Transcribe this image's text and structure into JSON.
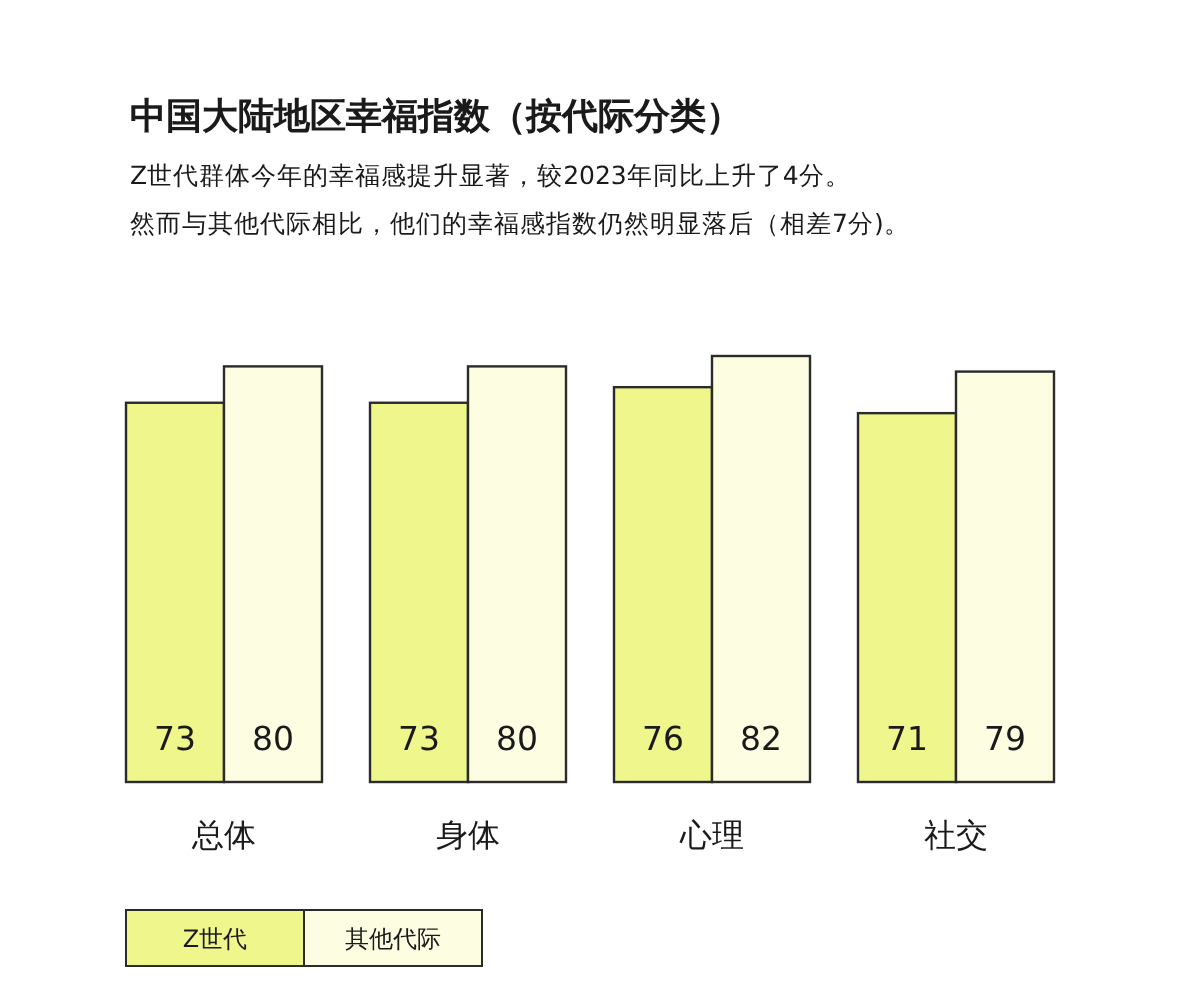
{
  "chart_data": {
    "type": "bar",
    "title": "中国大陆地区幸福指数（按代际分类）",
    "subtitle": "Z世代群体今年的幸福感提升显著，较2023年同比上升了4分。",
    "annotations": [
      "然而与其他代际相比，他们的幸福感指数仍然明显落后（相差7分)。"
    ],
    "categories": [
      "总体",
      "身体",
      "心理",
      "社交"
    ],
    "series": [
      {
        "name": "Z世代",
        "color": "#eff68c",
        "values": [
          73,
          73,
          76,
          71
        ]
      },
      {
        "name": "其他代际",
        "color": "#fdfde2",
        "values": [
          80,
          80,
          82,
          79
        ]
      }
    ],
    "data_labels": true,
    "legend": "bottom"
  }
}
